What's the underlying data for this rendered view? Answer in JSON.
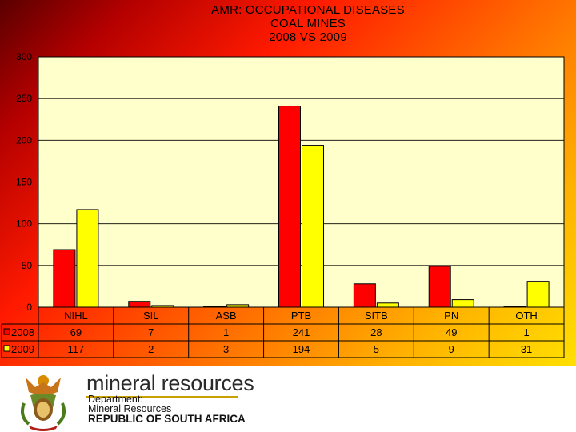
{
  "chart_data": {
    "type": "bar",
    "title_lines": [
      "AMR: OCCUPATIONAL DISEASES",
      "COAL MINES",
      "2008 VS 2009"
    ],
    "categories": [
      "NIHL",
      "SIL",
      "ASB",
      "PTB",
      "SITB",
      "PN",
      "OTH"
    ],
    "series": [
      {
        "name": "2008",
        "values": [
          69,
          7,
          1,
          241,
          28,
          49,
          1
        ],
        "color": "#ff0000"
      },
      {
        "name": "2009",
        "values": [
          117,
          2,
          3,
          194,
          5,
          9,
          31
        ],
        "color": "#ffff00"
      }
    ],
    "ylim": [
      0,
      300
    ],
    "yticks": [
      0,
      50,
      100,
      150,
      200,
      250,
      300
    ],
    "grid": true,
    "legend": "data table",
    "plot_bg": "#ffffcc"
  },
  "footer": {
    "brand_name": "mineral resources",
    "dept_line1": "Department:",
    "dept_line2": "Mineral Resources",
    "dept_line3": "REPUBLIC OF SOUTH AFRICA"
  }
}
